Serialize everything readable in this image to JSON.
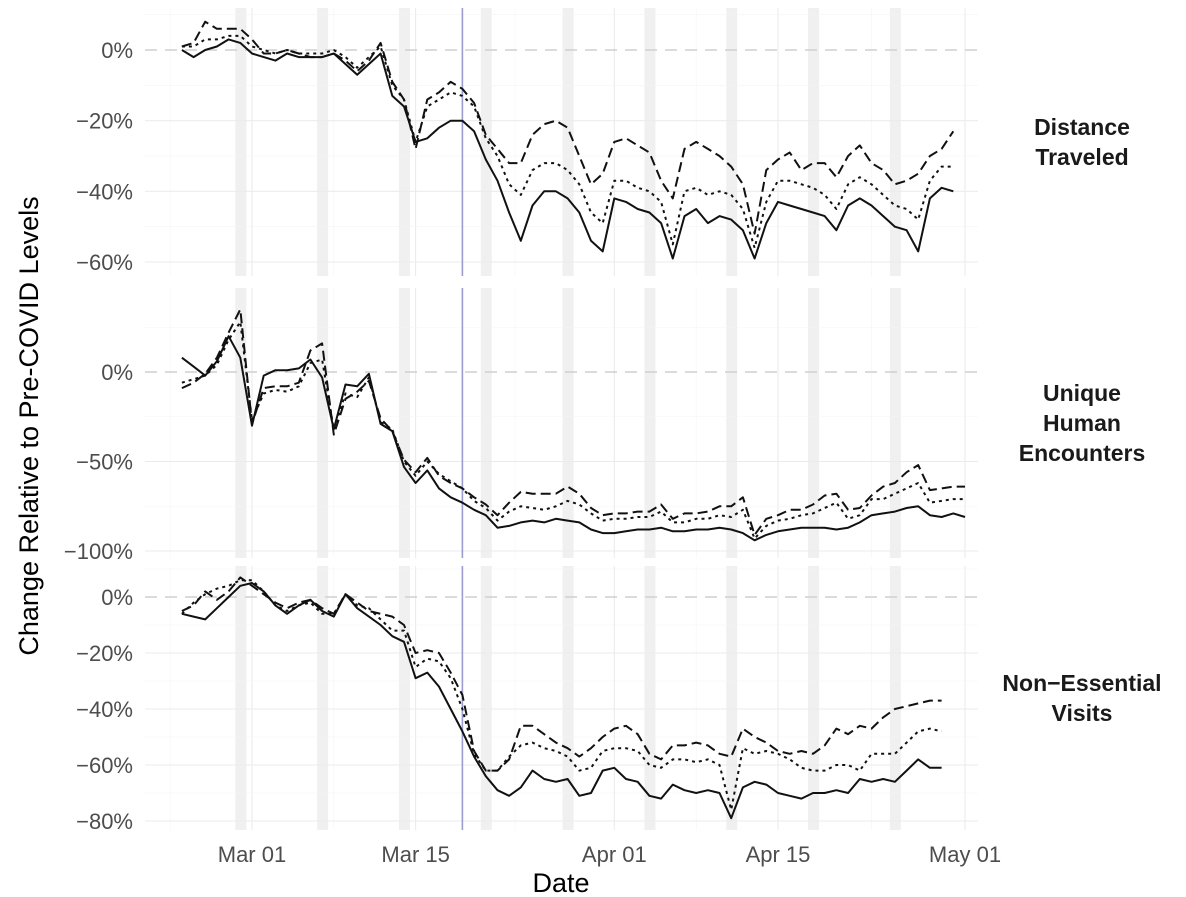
{
  "chart_data": {
    "type": "line",
    "xlabel": "Date",
    "ylabel": "Change Relative to Pre-COVID Levels",
    "x_start": "2020-02-24",
    "x_ticks": [
      "Mar 01",
      "Mar 15",
      "Apr 01",
      "Apr 15",
      "May 01"
    ],
    "x_tick_dates": [
      "2020-03-01",
      "2020-03-15",
      "2020-04-01",
      "2020-04-15",
      "2020-05-01"
    ],
    "reference_date": "2020-03-19",
    "highlight_dates": [
      "2020-02-29",
      "2020-03-07",
      "2020-03-14",
      "2020-03-21",
      "2020-03-28",
      "2020-04-04",
      "2020-04-11",
      "2020-04-18",
      "2020-04-25"
    ],
    "line_styles": [
      "solid",
      "dotted",
      "dashed"
    ],
    "zero_line": "dashed-grey",
    "panels": [
      {
        "title": "Distance\nTraveled",
        "yticks": [
          0,
          -20,
          -40,
          -60
        ],
        "ytick_labels": [
          "0%",
          "−20%",
          "−40%",
          "−60%"
        ],
        "ylim": [
          -65,
          12
        ],
        "series": [
          {
            "style": "solid",
            "values": [
              0,
              -2,
              0,
              1,
              3,
              2,
              -1,
              -2,
              -3,
              -1,
              -2,
              -2,
              -2,
              -1,
              -4,
              -7,
              -4,
              -1,
              -13,
              -16,
              -26,
              -25,
              -22,
              -20,
              -20,
              -23,
              -31,
              -37,
              -46,
              -54,
              -44,
              -40,
              -40,
              -42,
              -46,
              -54,
              -57,
              -42,
              -43,
              -45,
              -46,
              -49,
              -59,
              -47,
              -45,
              -49,
              -47,
              -48,
              -51,
              -59,
              -49,
              -43,
              -44,
              -45,
              -46,
              -47,
              -51,
              -44,
              -42,
              -44,
              -47,
              -50,
              -51,
              -57,
              -42,
              -39,
              -40
            ]
          },
          {
            "style": "dotted",
            "values": [
              1,
              1,
              3,
              3,
              4,
              4,
              1,
              0,
              -1,
              0,
              -1,
              -1,
              -1,
              0,
              -2,
              -5,
              -2,
              1,
              -10,
              -14,
              -26,
              -16,
              -14,
              -12,
              -13,
              -16,
              -25,
              -30,
              -38,
              -41,
              -34,
              -32,
              -32,
              -34,
              -38,
              -46,
              -49,
              -37,
              -37,
              -39,
              -40,
              -43,
              -55,
              -40,
              -39,
              -41,
              -40,
              -41,
              -45,
              -56,
              -43,
              -37,
              -37,
              -38,
              -39,
              -41,
              -45,
              -38,
              -36,
              -38,
              -41,
              -44,
              -45,
              -48,
              -37,
              -33,
              -33
            ]
          },
          {
            "style": "dashed",
            "values": [
              1,
              2,
              8,
              6,
              6,
              6,
              3,
              -1,
              -1,
              0,
              -1,
              -2,
              -2,
              -1,
              -3,
              -6,
              -3,
              2,
              -9,
              -14,
              -28,
              -14,
              -12,
              -9,
              -11,
              -15,
              -24,
              -28,
              -32,
              -32,
              -24,
              -21,
              -20,
              -22,
              -30,
              -38,
              -35,
              -26,
              -25,
              -27,
              -29,
              -37,
              -42,
              -28,
              -26,
              -28,
              -30,
              -33,
              -38,
              -52,
              -34,
              -31,
              -29,
              -34,
              -32,
              -32,
              -36,
              -30,
              -27,
              -32,
              -34,
              -38,
              -37,
              -35,
              -30,
              -28,
              -23
            ]
          }
        ]
      },
      {
        "title": "Unique\nHuman\nEncounters",
        "yticks": [
          0,
          -50,
          -100
        ],
        "ytick_labels": [
          "0%",
          "−50%",
          "−100%"
        ],
        "ylim": [
          -100,
          42
        ],
        "series": [
          {
            "style": "solid",
            "values": [
              8,
              3,
              -2,
              6,
              20,
              8,
              -30,
              -2,
              1,
              1,
              2,
              7,
              -3,
              -32,
              -7,
              -8,
              -1,
              -29,
              -33,
              -53,
              -62,
              -55,
              -65,
              -70,
              -73,
              -77,
              -80,
              -87,
              -86,
              -84,
              -83,
              -84,
              -82,
              -83,
              -84,
              -88,
              -90,
              -90,
              -89,
              -88,
              -88,
              -87,
              -89,
              -89,
              -88,
              -88,
              -87,
              -88,
              -90,
              -94,
              -91,
              -89,
              -88,
              -87,
              -87,
              -87,
              -88,
              -87,
              -84,
              -80,
              -79,
              -78,
              -76,
              -75,
              -80,
              -81,
              -79,
              -81
            ]
          },
          {
            "style": "dotted",
            "values": [
              -6,
              -4,
              -2,
              4,
              18,
              28,
              -27,
              -12,
              -10,
              -11,
              -8,
              5,
              7,
              -32,
              -12,
              -14,
              -3,
              -28,
              -32,
              -50,
              -58,
              -50,
              -57,
              -61,
              -65,
              -72,
              -76,
              -83,
              -78,
              -75,
              -76,
              -77,
              -75,
              -72,
              -74,
              -79,
              -83,
              -82,
              -82,
              -81,
              -81,
              -78,
              -84,
              -84,
              -82,
              -82,
              -80,
              -81,
              -77,
              -93,
              -86,
              -83,
              -82,
              -80,
              -79,
              -76,
              -73,
              -82,
              -80,
              -71,
              -71,
              -68,
              -65,
              -62,
              -73,
              -72,
              -71,
              -71
            ]
          },
          {
            "style": "dashed",
            "values": [
              -9,
              -6,
              -1,
              8,
              22,
              35,
              -29,
              -9,
              -8,
              -8,
              -6,
              12,
              16,
              -35,
              -15,
              -11,
              -5,
              -26,
              -33,
              -49,
              -56,
              -48,
              -58,
              -62,
              -65,
              -70,
              -74,
              -80,
              -73,
              -67,
              -68,
              -68,
              -68,
              -64,
              -68,
              -76,
              -80,
              -79,
              -79,
              -78,
              -78,
              -74,
              -82,
              -79,
              -79,
              -78,
              -75,
              -75,
              -70,
              -91,
              -82,
              -80,
              -77,
              -77,
              -74,
              -69,
              -68,
              -77,
              -76,
              -69,
              -64,
              -62,
              -56,
              -52,
              -66,
              -65,
              -64,
              -64
            ]
          }
        ]
      },
      {
        "title": "Non−Essential\nVisits",
        "yticks": [
          0,
          -20,
          -40,
          -60,
          -80
        ],
        "ytick_labels": [
          "0%",
          "−20%",
          "−40%",
          "−60%",
          "−80%"
        ],
        "ylim": [
          -83,
          12
        ],
        "series": [
          {
            "style": "solid",
            "values": [
              -6,
              -7,
              -8,
              -4,
              0,
              4,
              5,
              2,
              -3,
              -6,
              -3,
              -1,
              -5,
              -7,
              1,
              -4,
              -7,
              -10,
              -14,
              -16,
              -29,
              -27,
              -32,
              -40,
              -48,
              -57,
              -64,
              -69,
              -71,
              -68,
              -62,
              -65,
              -66,
              -65,
              -71,
              -70,
              -62,
              -61,
              -65,
              -66,
              -71,
              -72,
              -67,
              -69,
              -70,
              -69,
              -70,
              -79,
              -68,
              -66,
              -67,
              -70,
              -71,
              -72,
              -70,
              -70,
              -69,
              -70,
              -65,
              -66,
              -65,
              -66,
              -62,
              -58,
              -61,
              -61
            ]
          },
          {
            "style": "dotted",
            "values": [
              -6,
              -2,
              1,
              3,
              4,
              6,
              6,
              2,
              -3,
              -5,
              -3,
              -2,
              -6,
              -6,
              1,
              -3,
              -4,
              -8,
              -12,
              -12,
              -25,
              -22,
              -23,
              -29,
              -40,
              -56,
              -62,
              -62,
              -57,
              -53,
              -52,
              -54,
              -55,
              -57,
              -62,
              -61,
              -55,
              -54,
              -54,
              -55,
              -60,
              -61,
              -58,
              -58,
              -59,
              -58,
              -60,
              -76,
              -54,
              -56,
              -55,
              -56,
              -58,
              -61,
              -62,
              -62,
              -60,
              -60,
              -62,
              -56,
              -56,
              -56,
              -52,
              -48,
              -47,
              -48
            ]
          },
          {
            "style": "dashed",
            "values": [
              -5,
              -3,
              2,
              -1,
              2,
              7,
              4,
              1,
              -2,
              -4,
              -2,
              -1,
              -4,
              -6,
              1,
              -2,
              -5,
              -6,
              -7,
              -10,
              -20,
              -19,
              -20,
              -27,
              -35,
              -55,
              -62,
              -62,
              -58,
              -46,
              -46,
              -49,
              -52,
              -54,
              -57,
              -54,
              -50,
              -47,
              -46,
              -49,
              -56,
              -58,
              -53,
              -53,
              -52,
              -53,
              -56,
              -57,
              -47,
              -50,
              -52,
              -55,
              -56,
              -55,
              -56,
              -53,
              -47,
              -49,
              -46,
              -47,
              -43,
              -40,
              -39,
              -38,
              -37,
              -37
            ]
          }
        ]
      }
    ]
  }
}
